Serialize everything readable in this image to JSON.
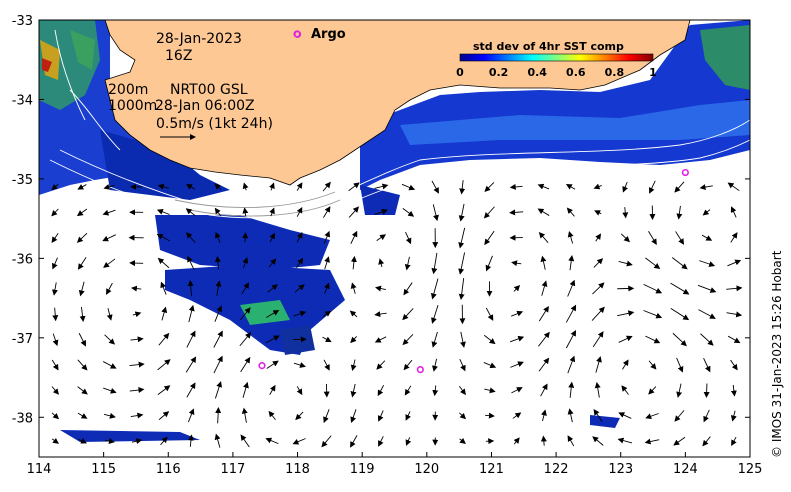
{
  "map": {
    "date_label": "28-Jan-2023",
    "time_label": "16Z",
    "depth_200_label": "200m",
    "depth_1000_label": "1000m",
    "altimetry_label": "NRT00 GSL",
    "altimetry_time_label": "28-Jan 06:00Z",
    "scale_label": "0.5m/s (1kt 24h)",
    "argo_label": "Argo",
    "credit": "© IMOS 31-Jan-2023 15:26 Hobart",
    "colors": {
      "land": "#fdc894",
      "ocean": "#ffffff",
      "argo_marker": "#e020e0",
      "arrow": "#000000"
    },
    "axes": {
      "lon_ticks": [
        "114",
        "115",
        "116",
        "117",
        "118",
        "119",
        "120",
        "121",
        "122",
        "123",
        "124",
        "125"
      ],
      "lat_ticks": [
        "-33",
        "-34",
        "-35",
        "-36",
        "-37",
        "-38"
      ],
      "lon_range": [
        114,
        125
      ],
      "lat_range": [
        -38.5,
        -33
      ]
    },
    "argo_floats": [
      {
        "lon": 118.0,
        "lat": -33.18
      },
      {
        "lon": 124.0,
        "lat": -34.92
      },
      {
        "lon": 117.45,
        "lat": -37.35
      },
      {
        "lon": 119.9,
        "lat": -37.4
      }
    ]
  },
  "colorbar": {
    "title": "std dev of 4hr SST comp",
    "ticks": [
      "0",
      "0.2",
      "0.4",
      "0.6",
      "0.8",
      "1"
    ],
    "colors": [
      "#00008f",
      "#0000ff",
      "#0080ff",
      "#00ffff",
      "#80ff80",
      "#ffff00",
      "#ff8000",
      "#ff0000",
      "#800000"
    ]
  }
}
